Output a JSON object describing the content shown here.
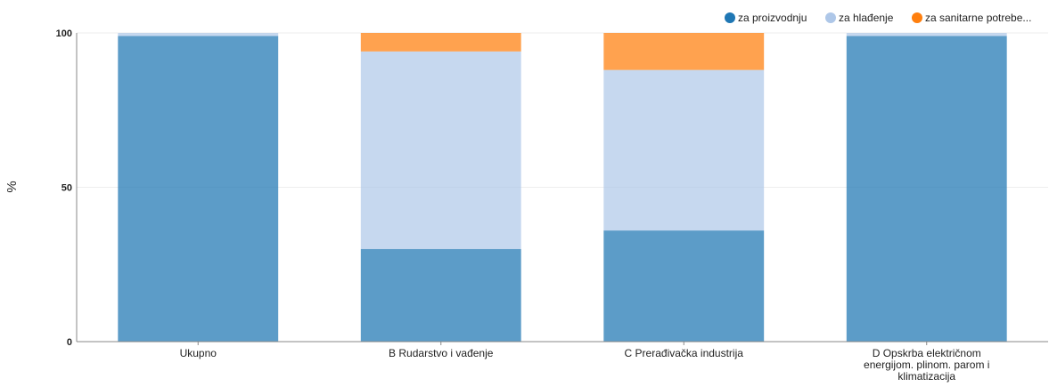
{
  "chart_data": {
    "type": "bar",
    "stacked": true,
    "categories": [
      [
        "Ukupno"
      ],
      [
        "B Rudarstvo i vađenje"
      ],
      [
        "C Prerađivačka industrija"
      ],
      [
        "D Opskrba električnom",
        "energijom. plinom. parom i",
        "klimatizacija"
      ]
    ],
    "series": [
      {
        "name": "za proizvodnju",
        "color": "#1f77b4",
        "values": [
          99,
          30,
          36,
          99
        ]
      },
      {
        "name": "za hlađenje",
        "color": "#aec7e8",
        "values": [
          1,
          64,
          52,
          1
        ]
      },
      {
        "name": "za sanitarne potrebe...",
        "color": "#ff7f0e",
        "values": [
          0,
          6,
          12,
          0
        ]
      }
    ],
    "ylabel": "%",
    "ylim": [
      0,
      100
    ],
    "yticks": [
      "0",
      "50",
      "100"
    ],
    "grid": true,
    "legend_position": "top-right"
  }
}
